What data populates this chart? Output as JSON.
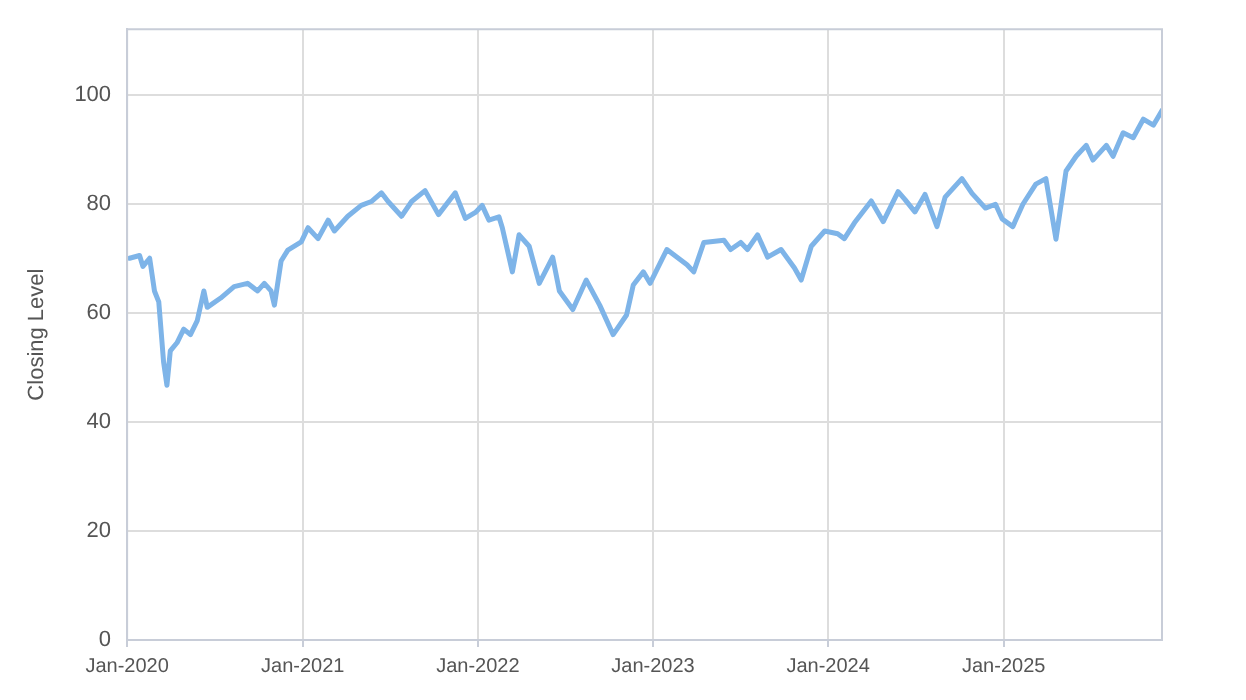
{
  "chart_data": {
    "type": "line",
    "ylabel": "Closing Level",
    "grid": true,
    "legend": false,
    "marker": "none",
    "line_style": "solid",
    "xlim": [
      "2020-01-01",
      "2025-11-27"
    ],
    "ylim": [
      0,
      112
    ],
    "xticks": [
      {
        "value": "2020-01-01",
        "label": "Jan-2020"
      },
      {
        "value": "2021-01-01",
        "label": "Jan-2021"
      },
      {
        "value": "2022-01-01",
        "label": "Jan-2022"
      },
      {
        "value": "2023-01-01",
        "label": "Jan-2023"
      },
      {
        "value": "2024-01-01",
        "label": "Jan-2024"
      },
      {
        "value": "2025-01-01",
        "label": "Jan-2025"
      }
    ],
    "yticks": [
      0,
      20,
      40,
      60,
      80,
      100
    ],
    "x": [
      "2020-01-06",
      "2020-01-27",
      "2020-02-03",
      "2020-02-17",
      "2020-02-27",
      "2020-03-07",
      "2020-03-17",
      "2020-03-24",
      "2020-03-31",
      "2020-04-14",
      "2020-04-28",
      "2020-05-12",
      "2020-05-26",
      "2020-06-09",
      "2020-06-16",
      "2020-07-14",
      "2020-08-11",
      "2020-09-08",
      "2020-09-29",
      "2020-10-13",
      "2020-10-27",
      "2020-11-03",
      "2020-11-17",
      "2020-12-01",
      "2020-12-29",
      "2021-01-12",
      "2021-02-02",
      "2021-02-23",
      "2021-03-08",
      "2021-04-05",
      "2021-05-03",
      "2021-05-24",
      "2021-06-14",
      "2021-06-28",
      "2021-07-26",
      "2021-08-16",
      "2021-09-13",
      "2021-10-11",
      "2021-11-15",
      "2021-12-06",
      "2021-12-27",
      "2022-01-10",
      "2022-01-24",
      "2022-02-14",
      "2022-02-21",
      "2022-03-14",
      "2022-03-28",
      "2022-04-18",
      "2022-05-09",
      "2022-06-06",
      "2022-06-20",
      "2022-07-18",
      "2022-08-15",
      "2022-09-12",
      "2022-10-10",
      "2022-11-07",
      "2022-11-21",
      "2022-12-12",
      "2022-12-26",
      "2023-01-30",
      "2023-03-13",
      "2023-03-27",
      "2023-04-17",
      "2023-05-29",
      "2023-06-12",
      "2023-07-03",
      "2023-07-17",
      "2023-08-07",
      "2023-08-28",
      "2023-09-25",
      "2023-10-23",
      "2023-11-06",
      "2023-11-27",
      "2023-12-25",
      "2024-01-21",
      "2024-02-04",
      "2024-02-25",
      "2024-03-31",
      "2024-04-25",
      "2024-05-26",
      "2024-06-09",
      "2024-06-30",
      "2024-07-21",
      "2024-08-15",
      "2024-09-01",
      "2024-10-06",
      "2024-10-27",
      "2024-11-24",
      "2024-12-15",
      "2024-12-29",
      "2025-01-20",
      "2025-02-10",
      "2025-03-09",
      "2025-03-30",
      "2025-04-20",
      "2025-05-11",
      "2025-06-01",
      "2025-06-22",
      "2025-07-06",
      "2025-08-03",
      "2025-08-17",
      "2025-09-07",
      "2025-09-28",
      "2025-10-19",
      "2025-11-09",
      "2025-11-27"
    ],
    "series": [
      {
        "color": "#7eb4e8",
        "values": [
          70,
          70.5,
          68.5,
          70,
          64,
          62,
          51,
          46.7,
          53,
          54.5,
          57,
          56,
          58.5,
          64,
          61,
          62.7,
          64.8,
          65.4,
          64,
          65.4,
          64,
          61.4,
          69.5,
          71.5,
          73,
          75.6,
          73.6,
          77,
          75,
          77.7,
          79.7,
          80.4,
          82,
          80.4,
          77.7,
          80.4,
          82.4,
          78,
          82,
          77.3,
          78.4,
          79.7,
          77,
          77.6,
          75.6,
          67.5,
          74.3,
          72.2,
          65.4,
          70.2,
          64,
          60.6,
          66,
          61.4,
          56,
          59.6,
          65.1,
          67.5,
          65.4,
          71.6,
          68.8,
          67.5,
          72.9,
          73.3,
          71.6,
          72.9,
          71.6,
          74.3,
          70.2,
          71.6,
          68.2,
          66,
          72.2,
          75,
          74.5,
          73.6,
          76.5,
          80.5,
          76.7,
          82.2,
          80.8,
          78.5,
          81.7,
          75.8,
          81.2,
          84.6,
          81.9,
          79.2,
          79.9,
          77.2,
          75.8,
          79.9,
          83.6,
          84.6,
          73.5,
          86,
          88.7,
          90.7,
          88,
          90.7,
          88.7,
          93,
          92.1,
          95.5,
          94.4,
          97.1
        ]
      }
    ]
  }
}
